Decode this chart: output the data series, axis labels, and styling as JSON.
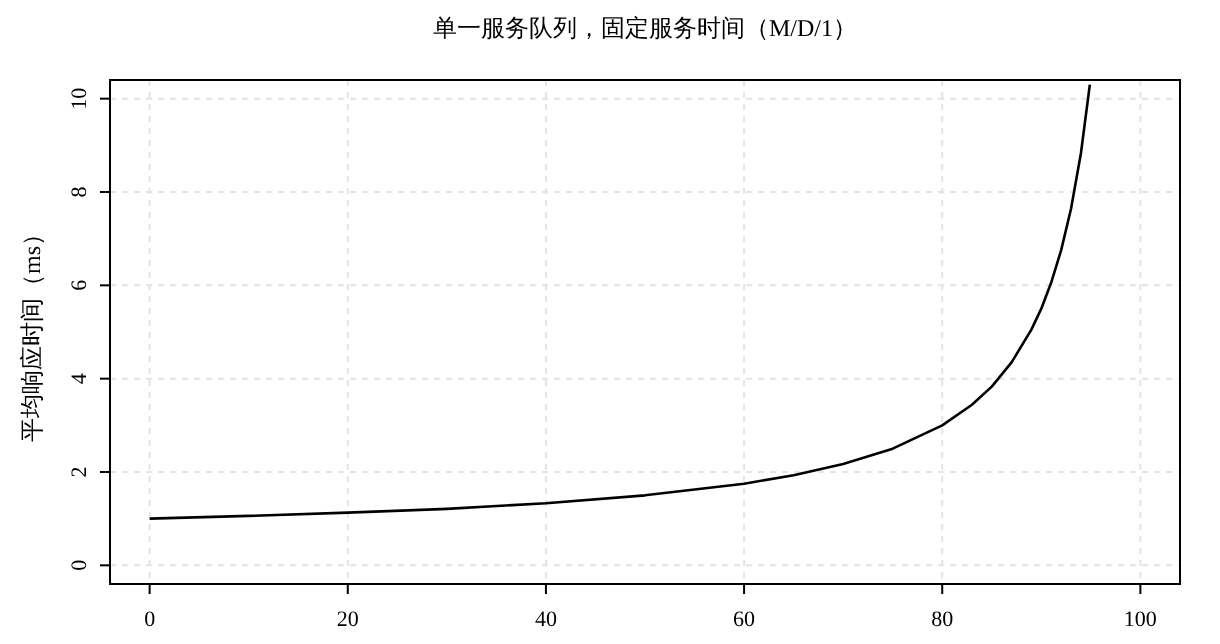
{
  "chart_data": {
    "type": "line",
    "title": "单一服务队列，固定服务时间（M/D/1）",
    "ylabel": "平均响应时间（ms）",
    "x": [
      0,
      10,
      20,
      30,
      40,
      50,
      60,
      65,
      70,
      75,
      80,
      83,
      85,
      87,
      89,
      90,
      91,
      92,
      93,
      94,
      94.9
    ],
    "series": [
      {
        "color": "#000000",
        "values": [
          1,
          1.06,
          1.13,
          1.21,
          1.33,
          1.5,
          1.75,
          1.93,
          2.17,
          2.5,
          3,
          3.44,
          3.83,
          4.35,
          5.05,
          5.5,
          6.06,
          6.75,
          7.64,
          8.83,
          10.3
        ]
      }
    ],
    "xlim": [
      -4,
      104
    ],
    "ylim": [
      -0.4,
      10.4
    ],
    "xticks": [
      0,
      20,
      40,
      60,
      80,
      100
    ],
    "yticks": [
      0,
      2,
      4,
      6,
      8,
      10
    ],
    "grid": true,
    "line_style": "solid"
  }
}
